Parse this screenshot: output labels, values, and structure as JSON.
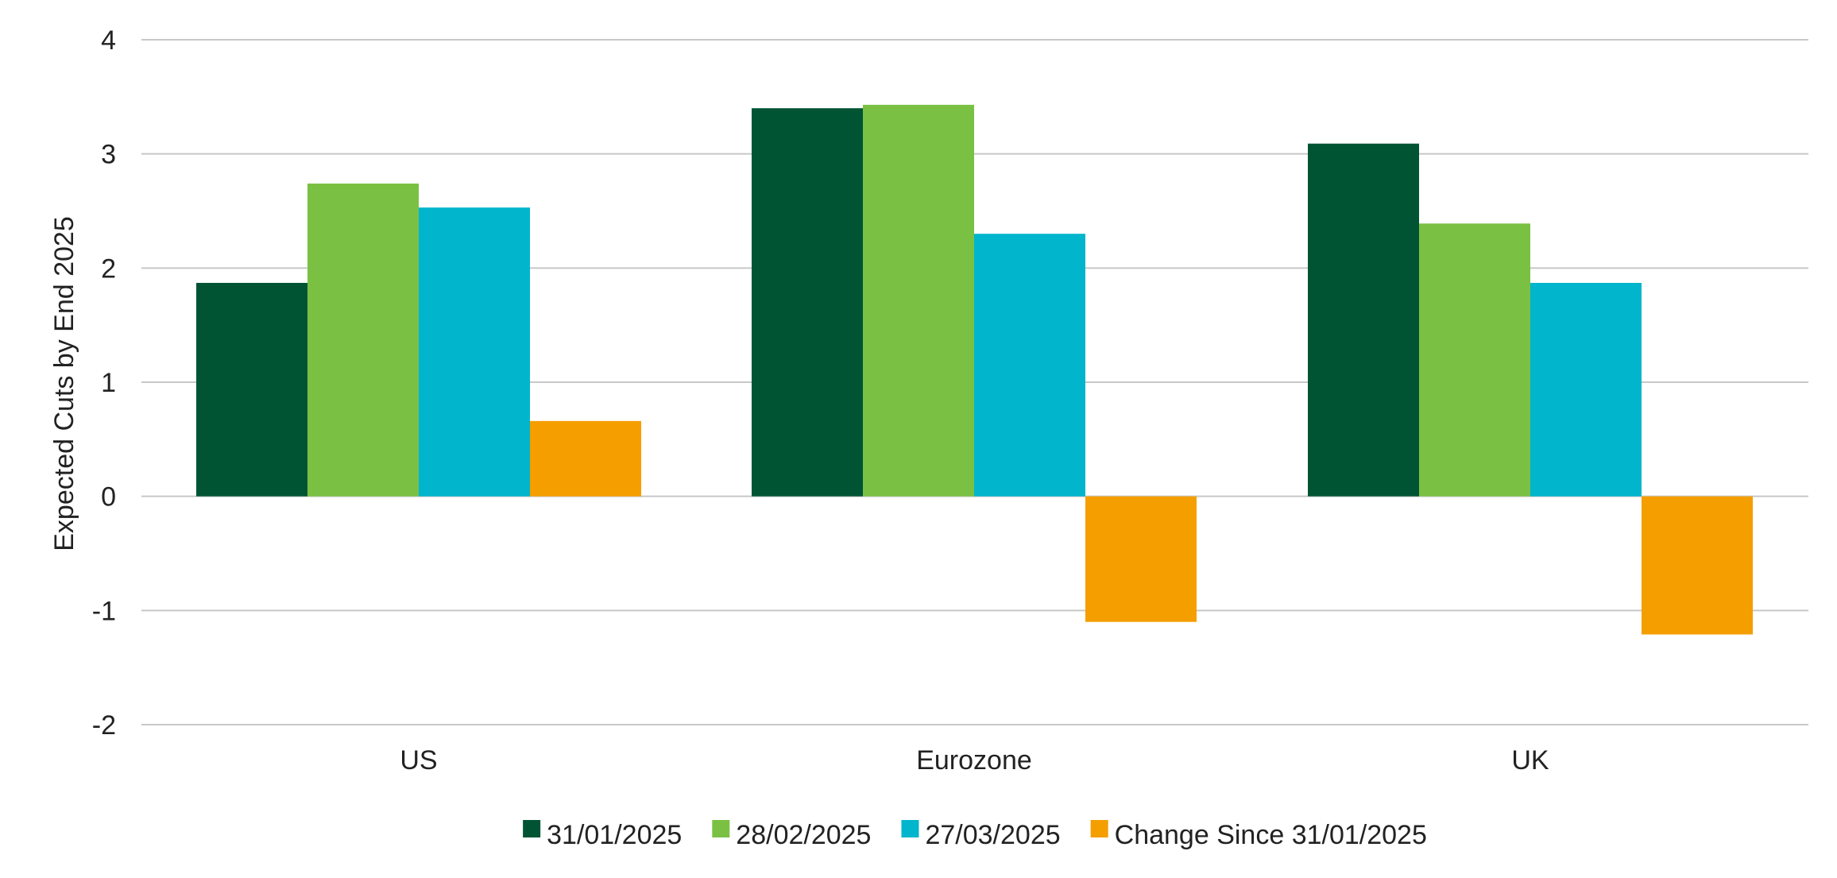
{
  "chart_data": {
    "type": "bar",
    "title": "",
    "xlabel": "",
    "ylabel": "Expected Cuts by End 2025",
    "ylim": [
      -2,
      4
    ],
    "yticks": [
      4,
      3,
      2,
      1,
      0,
      -1,
      -2
    ],
    "ytick_labels": [
      "4",
      "3",
      "2",
      "1",
      "0",
      "-1",
      "-2"
    ],
    "grid": true,
    "legend_position": "bottom",
    "categories": [
      "US",
      "Eurozone",
      "UK"
    ],
    "series": [
      {
        "name": "31/01/2025",
        "color": "#005434",
        "values": [
          1.87,
          3.4,
          3.09
        ]
      },
      {
        "name": "28/02/2025",
        "color": "#7AC143",
        "values": [
          2.74,
          3.43,
          2.39
        ]
      },
      {
        "name": "27/03/2025",
        "color": "#00B5CC",
        "values": [
          2.53,
          2.3,
          1.87
        ]
      },
      {
        "name": "Change Since 31/01/2025",
        "color": "#F59E00",
        "values": [
          0.66,
          -1.1,
          -1.21
        ]
      }
    ]
  }
}
